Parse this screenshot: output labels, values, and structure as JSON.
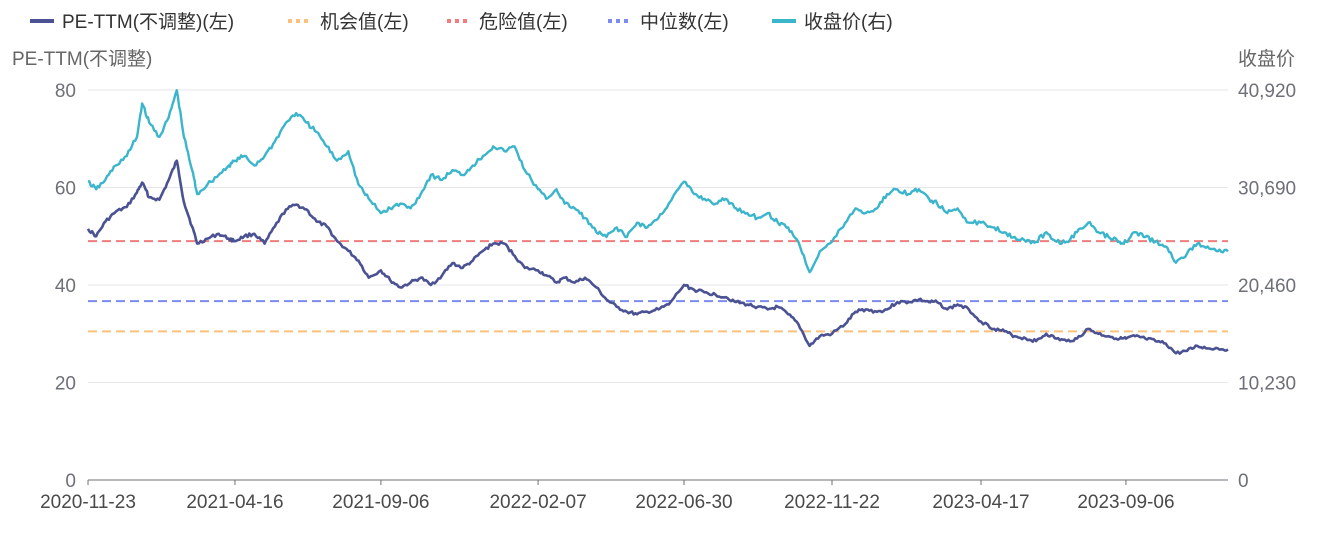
{
  "chart_data": {
    "type": "line",
    "legend": [
      {
        "name": "PE-TTM(不调整)(左)",
        "color": "#4a5293",
        "style": "solid"
      },
      {
        "name": "机会值(左)",
        "color": "#f9c17c",
        "style": "dotted"
      },
      {
        "name": "危险值(左)",
        "color": "#ef7d7d",
        "style": "dotted"
      },
      {
        "name": "中位数(左)",
        "color": "#7b8bef",
        "style": "dotted"
      },
      {
        "name": "收盘价(右)",
        "color": "#3ab5cb",
        "style": "solid"
      }
    ],
    "legend_position": "top-left",
    "y_left_title": "PE-TTM(不调整)",
    "y_right_title": "收盘价",
    "y_left_ticks": [
      "0",
      "20",
      "40",
      "60",
      "80"
    ],
    "y_right_ticks": [
      "0",
      "10,230",
      "20,460",
      "30,690",
      "40,920"
    ],
    "y_left_range": [
      0,
      80
    ],
    "y_right_range": [
      0,
      40920
    ],
    "x_tick_labels": [
      "2020-11-23",
      "2021-04-16",
      "2021-09-06",
      "2022-02-07",
      "2022-06-30",
      "2022-11-22",
      "2023-04-17",
      "2023-09-06"
    ],
    "x_range": [
      "2020-11-23",
      "2023-12-15"
    ],
    "grid": "horizontal",
    "reference_lines": [
      {
        "name": "机会值(左)",
        "value": 30.5,
        "color": "#f9c17c"
      },
      {
        "name": "中位数(左)",
        "value": 36.7,
        "color": "#7b8bef"
      },
      {
        "name": "危险值(左)",
        "value": 49.0,
        "color": "#ef7d7d"
      }
    ],
    "series": [
      {
        "name": "PE-TTM(不调整)(左)",
        "axis": "left",
        "color": "#4a5293",
        "points": [
          [
            "2020-11-23",
            51.5
          ],
          [
            "2020-12-01",
            50.0
          ],
          [
            "2020-12-10",
            53.0
          ],
          [
            "2020-12-20",
            55.0
          ],
          [
            "2020-12-31",
            56.0
          ],
          [
            "2021-01-10",
            59.0
          ],
          [
            "2021-01-15",
            61.0
          ],
          [
            "2021-01-22",
            58.0
          ],
          [
            "2021-02-01",
            57.5
          ],
          [
            "2021-02-10",
            61.5
          ],
          [
            "2021-02-18",
            65.5
          ],
          [
            "2021-02-25",
            57.0
          ],
          [
            "2021-03-05",
            52.0
          ],
          [
            "2021-03-10",
            48.5
          ],
          [
            "2021-03-20",
            49.5
          ],
          [
            "2021-03-31",
            50.5
          ],
          [
            "2021-04-10",
            49.5
          ],
          [
            "2021-04-16",
            49.0
          ],
          [
            "2021-04-25",
            50.0
          ],
          [
            "2021-05-05",
            50.5
          ],
          [
            "2021-05-15",
            48.5
          ],
          [
            "2021-05-25",
            52.0
          ],
          [
            "2021-06-05",
            55.5
          ],
          [
            "2021-06-15",
            56.5
          ],
          [
            "2021-06-25",
            55.5
          ],
          [
            "2021-07-05",
            53.0
          ],
          [
            "2021-07-15",
            52.0
          ],
          [
            "2021-07-25",
            49.0
          ],
          [
            "2021-08-05",
            47.0
          ],
          [
            "2021-08-15",
            45.0
          ],
          [
            "2021-08-25",
            41.5
          ],
          [
            "2021-09-06",
            43.0
          ],
          [
            "2021-09-15",
            41.0
          ],
          [
            "2021-09-25",
            39.5
          ],
          [
            "2021-10-05",
            40.5
          ],
          [
            "2021-10-15",
            41.5
          ],
          [
            "2021-10-25",
            40.0
          ],
          [
            "2021-11-05",
            42.0
          ],
          [
            "2021-11-15",
            44.5
          ],
          [
            "2021-11-25",
            43.5
          ],
          [
            "2021-12-05",
            45.0
          ],
          [
            "2021-12-15",
            47.0
          ],
          [
            "2021-12-25",
            48.5
          ],
          [
            "2022-01-05",
            48.5
          ],
          [
            "2022-01-15",
            46.0
          ],
          [
            "2022-01-25",
            43.5
          ],
          [
            "2022-02-07",
            43.0
          ],
          [
            "2022-02-15",
            42.0
          ],
          [
            "2022-02-25",
            40.5
          ],
          [
            "2022-03-05",
            41.5
          ],
          [
            "2022-03-15",
            40.5
          ],
          [
            "2022-03-25",
            41.5
          ],
          [
            "2022-04-05",
            39.5
          ],
          [
            "2022-04-15",
            37.0
          ],
          [
            "2022-04-25",
            35.5
          ],
          [
            "2022-05-05",
            34.5
          ],
          [
            "2022-05-15",
            34.0
          ],
          [
            "2022-05-25",
            34.5
          ],
          [
            "2022-06-05",
            35.0
          ],
          [
            "2022-06-15",
            36.0
          ],
          [
            "2022-06-30",
            40.0
          ],
          [
            "2022-07-10",
            39.0
          ],
          [
            "2022-07-20",
            38.5
          ],
          [
            "2022-07-31",
            38.0
          ],
          [
            "2022-08-10",
            37.5
          ],
          [
            "2022-08-20",
            36.5
          ],
          [
            "2022-08-31",
            36.0
          ],
          [
            "2022-09-10",
            35.5
          ],
          [
            "2022-09-20",
            35.0
          ],
          [
            "2022-09-30",
            35.5
          ],
          [
            "2022-10-10",
            34.0
          ],
          [
            "2022-10-20",
            32.0
          ],
          [
            "2022-10-31",
            27.5
          ],
          [
            "2022-11-10",
            29.5
          ],
          [
            "2022-11-22",
            30.0
          ],
          [
            "2022-12-05",
            32.0
          ],
          [
            "2022-12-15",
            34.5
          ],
          [
            "2022-12-25",
            35.0
          ],
          [
            "2023-01-05",
            34.5
          ],
          [
            "2023-01-15",
            35.0
          ],
          [
            "2023-01-25",
            36.5
          ],
          [
            "2023-02-05",
            36.5
          ],
          [
            "2023-02-15",
            37.0
          ],
          [
            "2023-02-25",
            36.5
          ],
          [
            "2023-03-05",
            36.5
          ],
          [
            "2023-03-15",
            35.0
          ],
          [
            "2023-03-25",
            36.0
          ],
          [
            "2023-04-05",
            35.0
          ],
          [
            "2023-04-17",
            32.5
          ],
          [
            "2023-04-30",
            31.0
          ],
          [
            "2023-05-10",
            30.5
          ],
          [
            "2023-05-20",
            29.5
          ],
          [
            "2023-05-31",
            29.0
          ],
          [
            "2023-06-10",
            28.5
          ],
          [
            "2023-06-20",
            30.0
          ],
          [
            "2023-06-30",
            29.0
          ],
          [
            "2023-07-10",
            28.5
          ],
          [
            "2023-07-20",
            29.0
          ],
          [
            "2023-07-31",
            31.0
          ],
          [
            "2023-08-10",
            30.0
          ],
          [
            "2023-08-20",
            29.5
          ],
          [
            "2023-08-31",
            29.0
          ],
          [
            "2023-09-06",
            29.0
          ],
          [
            "2023-09-15",
            29.5
          ],
          [
            "2023-09-25",
            29.0
          ],
          [
            "2023-10-05",
            28.5
          ],
          [
            "2023-10-15",
            28.0
          ],
          [
            "2023-10-25",
            26.0
          ],
          [
            "2023-11-05",
            26.5
          ],
          [
            "2023-11-15",
            27.5
          ],
          [
            "2023-11-25",
            27.0
          ],
          [
            "2023-12-05",
            27.0
          ],
          [
            "2023-12-15",
            26.8
          ]
        ]
      },
      {
        "name": "收盘价(右)",
        "axis": "right",
        "color": "#3ab5cb",
        "points": [
          [
            "2020-11-23",
            31300
          ],
          [
            "2020-12-01",
            30500
          ],
          [
            "2020-12-10",
            31500
          ],
          [
            "2020-12-20",
            33000
          ],
          [
            "2020-12-31",
            34000
          ],
          [
            "2021-01-10",
            36000
          ],
          [
            "2021-01-15",
            39500
          ],
          [
            "2021-01-22",
            37500
          ],
          [
            "2021-02-01",
            36000
          ],
          [
            "2021-02-10",
            38000
          ],
          [
            "2021-02-18",
            40900
          ],
          [
            "2021-02-25",
            36000
          ],
          [
            "2021-03-05",
            32500
          ],
          [
            "2021-03-10",
            30000
          ],
          [
            "2021-03-20",
            31000
          ],
          [
            "2021-03-31",
            32000
          ],
          [
            "2021-04-10",
            33000
          ],
          [
            "2021-04-16",
            33500
          ],
          [
            "2021-04-25",
            34000
          ],
          [
            "2021-05-05",
            33000
          ],
          [
            "2021-05-15",
            34000
          ],
          [
            "2021-05-25",
            35500
          ],
          [
            "2021-06-05",
            37500
          ],
          [
            "2021-06-15",
            38500
          ],
          [
            "2021-06-25",
            37500
          ],
          [
            "2021-07-05",
            36500
          ],
          [
            "2021-07-15",
            35000
          ],
          [
            "2021-07-25",
            33500
          ],
          [
            "2021-08-05",
            34500
          ],
          [
            "2021-08-15",
            31000
          ],
          [
            "2021-08-25",
            29500
          ],
          [
            "2021-09-06",
            28000
          ],
          [
            "2021-09-15",
            28500
          ],
          [
            "2021-09-25",
            29000
          ],
          [
            "2021-10-05",
            28500
          ],
          [
            "2021-10-15",
            30000
          ],
          [
            "2021-10-25",
            32000
          ],
          [
            "2021-11-05",
            31500
          ],
          [
            "2021-11-15",
            32500
          ],
          [
            "2021-11-25",
            32000
          ],
          [
            "2021-12-05",
            33000
          ],
          [
            "2021-12-15",
            34000
          ],
          [
            "2021-12-25",
            35000
          ],
          [
            "2022-01-05",
            34500
          ],
          [
            "2022-01-15",
            35000
          ],
          [
            "2022-01-25",
            32500
          ],
          [
            "2022-02-07",
            30500
          ],
          [
            "2022-02-15",
            29500
          ],
          [
            "2022-02-25",
            30500
          ],
          [
            "2022-03-05",
            29000
          ],
          [
            "2022-03-15",
            28500
          ],
          [
            "2022-03-25",
            27500
          ],
          [
            "2022-04-05",
            26000
          ],
          [
            "2022-04-15",
            25500
          ],
          [
            "2022-04-25",
            26500
          ],
          [
            "2022-05-05",
            25500
          ],
          [
            "2022-05-15",
            27000
          ],
          [
            "2022-05-25",
            26500
          ],
          [
            "2022-06-05",
            27500
          ],
          [
            "2022-06-15",
            29000
          ],
          [
            "2022-06-30",
            31300
          ],
          [
            "2022-07-10",
            30000
          ],
          [
            "2022-07-20",
            29500
          ],
          [
            "2022-07-31",
            29000
          ],
          [
            "2022-08-10",
            29500
          ],
          [
            "2022-08-20",
            28500
          ],
          [
            "2022-08-31",
            28000
          ],
          [
            "2022-09-10",
            27500
          ],
          [
            "2022-09-20",
            28000
          ],
          [
            "2022-09-30",
            27000
          ],
          [
            "2022-10-10",
            26500
          ],
          [
            "2022-10-20",
            25000
          ],
          [
            "2022-10-31",
            21800
          ],
          [
            "2022-11-10",
            24000
          ],
          [
            "2022-11-22",
            25000
          ],
          [
            "2022-12-05",
            27000
          ],
          [
            "2022-12-15",
            28500
          ],
          [
            "2022-12-25",
            28000
          ],
          [
            "2023-01-05",
            28500
          ],
          [
            "2023-01-15",
            30000
          ],
          [
            "2023-01-25",
            30500
          ],
          [
            "2023-02-05",
            30000
          ],
          [
            "2023-02-15",
            30500
          ],
          [
            "2023-02-25",
            29500
          ],
          [
            "2023-03-05",
            29000
          ],
          [
            "2023-03-15",
            28000
          ],
          [
            "2023-03-25",
            28500
          ],
          [
            "2023-04-05",
            27000
          ],
          [
            "2023-04-17",
            27000
          ],
          [
            "2023-04-30",
            26500
          ],
          [
            "2023-05-10",
            26000
          ],
          [
            "2023-05-20",
            25500
          ],
          [
            "2023-05-31",
            25000
          ],
          [
            "2023-06-10",
            25000
          ],
          [
            "2023-06-20",
            26000
          ],
          [
            "2023-06-30",
            25000
          ],
          [
            "2023-07-10",
            25000
          ],
          [
            "2023-07-20",
            26000
          ],
          [
            "2023-07-31",
            27000
          ],
          [
            "2023-08-10",
            26000
          ],
          [
            "2023-08-20",
            25500
          ],
          [
            "2023-08-31",
            25000
          ],
          [
            "2023-09-06",
            25000
          ],
          [
            "2023-09-15",
            26000
          ],
          [
            "2023-09-25",
            25500
          ],
          [
            "2023-10-05",
            25000
          ],
          [
            "2023-10-15",
            24500
          ],
          [
            "2023-10-25",
            22800
          ],
          [
            "2023-11-05",
            23800
          ],
          [
            "2023-11-15",
            24800
          ],
          [
            "2023-11-25",
            24500
          ],
          [
            "2023-12-05",
            24000
          ],
          [
            "2023-12-15",
            24000
          ]
        ]
      }
    ]
  }
}
